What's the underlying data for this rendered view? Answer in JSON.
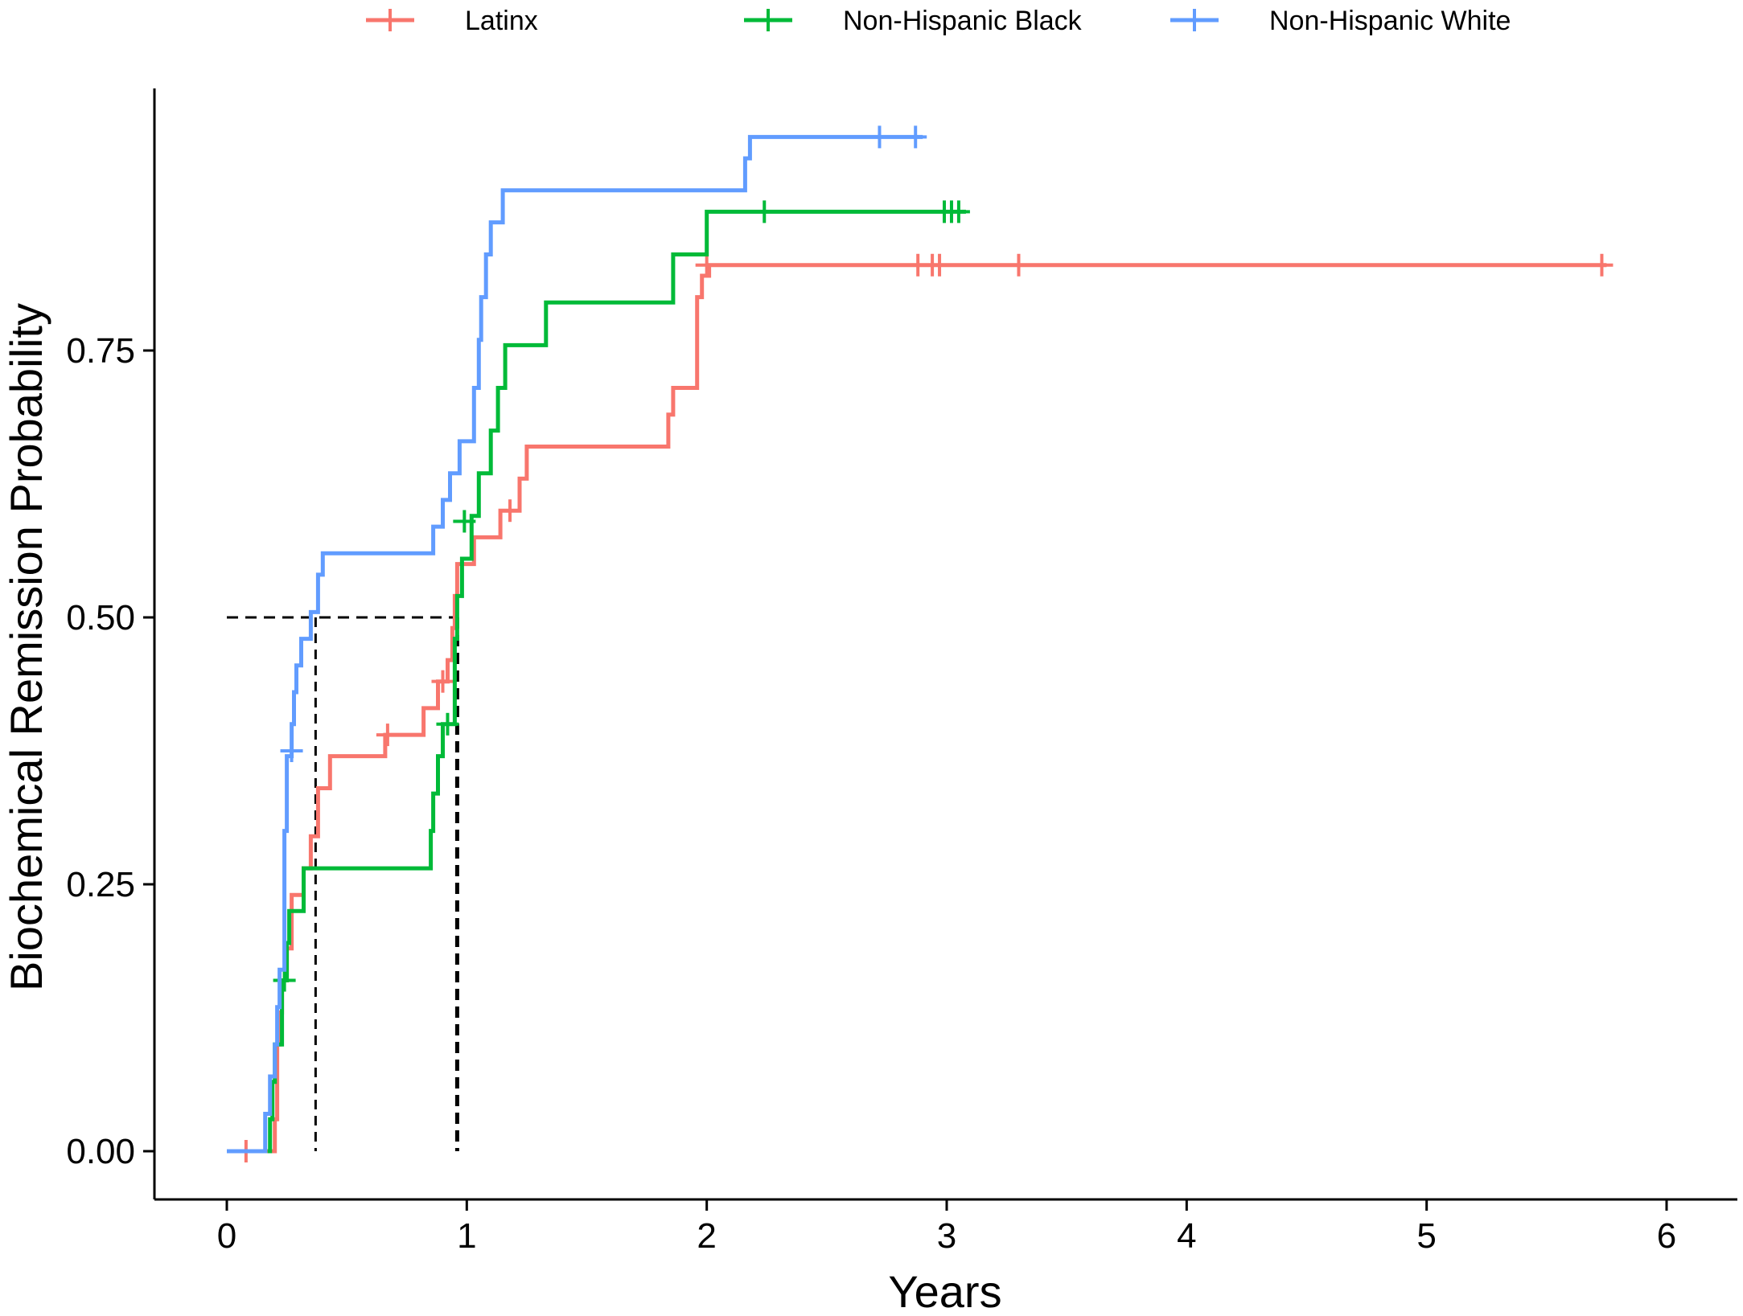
{
  "chart_data": {
    "type": "line",
    "subtype": "kaplan-meier step",
    "title": "",
    "xlabel": "Years",
    "ylabel": "Biochemical Remission Probability",
    "xlim": [
      -0.3,
      6.3
    ],
    "ylim": [
      -0.05,
      1.0
    ],
    "x_ticks": [
      0,
      1,
      2,
      3,
      4,
      5,
      6
    ],
    "x_tick_labels": [
      "0",
      "1",
      "2",
      "3",
      "4",
      "5",
      "6"
    ],
    "y_ticks": [
      0,
      0.25,
      0.5,
      0.75
    ],
    "y_tick_labels": [
      "0.00",
      "0.25",
      "0.50",
      "0.75"
    ],
    "grid": false,
    "legend_position": "top",
    "series": [
      {
        "name": "Latinx",
        "color": "#F8766D",
        "steps": [
          [
            0,
            0
          ],
          [
            0.2,
            0
          ],
          [
            0.2,
            0.03
          ],
          [
            0.21,
            0.03
          ],
          [
            0.21,
            0.1
          ],
          [
            0.22,
            0.1
          ],
          [
            0.22,
            0.13
          ],
          [
            0.23,
            0.13
          ],
          [
            0.23,
            0.16
          ],
          [
            0.25,
            0.16
          ],
          [
            0.25,
            0.19
          ],
          [
            0.27,
            0.19
          ],
          [
            0.27,
            0.24
          ],
          [
            0.32,
            0.24
          ],
          [
            0.32,
            0.265
          ],
          [
            0.35,
            0.265
          ],
          [
            0.35,
            0.295
          ],
          [
            0.38,
            0.295
          ],
          [
            0.38,
            0.34
          ],
          [
            0.43,
            0.34
          ],
          [
            0.43,
            0.37
          ],
          [
            0.66,
            0.37
          ],
          [
            0.66,
            0.39
          ],
          [
            0.82,
            0.39
          ],
          [
            0.82,
            0.415
          ],
          [
            0.88,
            0.415
          ],
          [
            0.88,
            0.44
          ],
          [
            0.92,
            0.44
          ],
          [
            0.92,
            0.46
          ],
          [
            0.94,
            0.46
          ],
          [
            0.94,
            0.49
          ],
          [
            0.95,
            0.49
          ],
          [
            0.95,
            0.52
          ],
          [
            0.96,
            0.52
          ],
          [
            0.96,
            0.55
          ],
          [
            1.03,
            0.55
          ],
          [
            1.03,
            0.575
          ],
          [
            1.14,
            0.575
          ],
          [
            1.14,
            0.6
          ],
          [
            1.22,
            0.6
          ],
          [
            1.22,
            0.63
          ],
          [
            1.25,
            0.63
          ],
          [
            1.25,
            0.66
          ],
          [
            1.84,
            0.66
          ],
          [
            1.84,
            0.69
          ],
          [
            1.86,
            0.69
          ],
          [
            1.86,
            0.715
          ],
          [
            1.96,
            0.715
          ],
          [
            1.96,
            0.8
          ],
          [
            1.98,
            0.8
          ],
          [
            1.98,
            0.82
          ],
          [
            2.01,
            0.82
          ],
          [
            2.01,
            0.83
          ],
          [
            5.75,
            0.83
          ]
        ],
        "censor_x": [
          0.08,
          0.67,
          0.9,
          1.18,
          2.0,
          2.88,
          2.94,
          2.97,
          3.3,
          5.73
        ],
        "censor_y": [
          0,
          0.39,
          0.44,
          0.6,
          0.83,
          0.83,
          0.83,
          0.83,
          0.83,
          0.83
        ]
      },
      {
        "name": "Non-Hispanic Black",
        "color": "#00BA38",
        "steps": [
          [
            0.17,
            0
          ],
          [
            0.18,
            0
          ],
          [
            0.18,
            0.03
          ],
          [
            0.19,
            0.03
          ],
          [
            0.19,
            0.065
          ],
          [
            0.2,
            0.065
          ],
          [
            0.2,
            0.1
          ],
          [
            0.23,
            0.1
          ],
          [
            0.23,
            0.16
          ],
          [
            0.25,
            0.16
          ],
          [
            0.25,
            0.195
          ],
          [
            0.26,
            0.195
          ],
          [
            0.26,
            0.225
          ],
          [
            0.32,
            0.225
          ],
          [
            0.32,
            0.265
          ],
          [
            0.85,
            0.265
          ],
          [
            0.85,
            0.3
          ],
          [
            0.86,
            0.3
          ],
          [
            0.86,
            0.335
          ],
          [
            0.88,
            0.335
          ],
          [
            0.88,
            0.37
          ],
          [
            0.9,
            0.37
          ],
          [
            0.9,
            0.4
          ],
          [
            0.95,
            0.4
          ],
          [
            0.95,
            0.48
          ],
          [
            0.96,
            0.48
          ],
          [
            0.96,
            0.52
          ],
          [
            0.98,
            0.52
          ],
          [
            0.98,
            0.555
          ],
          [
            1.02,
            0.555
          ],
          [
            1.02,
            0.595
          ],
          [
            1.05,
            0.595
          ],
          [
            1.05,
            0.635
          ],
          [
            1.1,
            0.635
          ],
          [
            1.1,
            0.675
          ],
          [
            1.13,
            0.675
          ],
          [
            1.13,
            0.715
          ],
          [
            1.16,
            0.715
          ],
          [
            1.16,
            0.755
          ],
          [
            1.33,
            0.755
          ],
          [
            1.33,
            0.795
          ],
          [
            1.86,
            0.795
          ],
          [
            1.86,
            0.84
          ],
          [
            2.0,
            0.84
          ],
          [
            2.0,
            0.88
          ],
          [
            3.08,
            0.88
          ]
        ],
        "censor_x": [
          0.24,
          0.92,
          0.99,
          2.24,
          2.99,
          3.02,
          3.05
        ],
        "censor_y": [
          0.16,
          0.4,
          0.59,
          0.88,
          0.88,
          0.88,
          0.88
        ]
      },
      {
        "name": "Non-Hispanic White",
        "color": "#619CFF",
        "steps": [
          [
            0,
            0
          ],
          [
            0.16,
            0
          ],
          [
            0.16,
            0.035
          ],
          [
            0.18,
            0.035
          ],
          [
            0.18,
            0.07
          ],
          [
            0.2,
            0.07
          ],
          [
            0.2,
            0.1
          ],
          [
            0.21,
            0.1
          ],
          [
            0.21,
            0.135
          ],
          [
            0.22,
            0.135
          ],
          [
            0.22,
            0.17
          ],
          [
            0.24,
            0.17
          ],
          [
            0.24,
            0.3
          ],
          [
            0.25,
            0.3
          ],
          [
            0.25,
            0.37
          ],
          [
            0.27,
            0.37
          ],
          [
            0.27,
            0.4
          ],
          [
            0.28,
            0.4
          ],
          [
            0.28,
            0.43
          ],
          [
            0.29,
            0.43
          ],
          [
            0.29,
            0.455
          ],
          [
            0.31,
            0.455
          ],
          [
            0.31,
            0.48
          ],
          [
            0.35,
            0.48
          ],
          [
            0.35,
            0.505
          ],
          [
            0.38,
            0.505
          ],
          [
            0.38,
            0.54
          ],
          [
            0.4,
            0.54
          ],
          [
            0.4,
            0.56
          ],
          [
            0.86,
            0.56
          ],
          [
            0.86,
            0.585
          ],
          [
            0.9,
            0.585
          ],
          [
            0.9,
            0.61
          ],
          [
            0.93,
            0.61
          ],
          [
            0.93,
            0.635
          ],
          [
            0.97,
            0.635
          ],
          [
            0.97,
            0.665
          ],
          [
            1.03,
            0.665
          ],
          [
            1.03,
            0.715
          ],
          [
            1.05,
            0.715
          ],
          [
            1.05,
            0.76
          ],
          [
            1.06,
            0.76
          ],
          [
            1.06,
            0.8
          ],
          [
            1.08,
            0.8
          ],
          [
            1.08,
            0.84
          ],
          [
            1.1,
            0.84
          ],
          [
            1.1,
            0.87
          ],
          [
            1.15,
            0.87
          ],
          [
            1.15,
            0.9
          ],
          [
            2.16,
            0.9
          ],
          [
            2.16,
            0.93
          ],
          [
            2.18,
            0.93
          ],
          [
            2.18,
            0.95
          ],
          [
            2.9,
            0.95
          ]
        ],
        "censor_x": [
          0.27,
          2.72,
          2.87
        ],
        "censor_y": [
          0.375,
          0.95,
          0.95
        ]
      }
    ],
    "median_reference": {
      "y": 0.5,
      "x_values": [
        0.37,
        0.96
      ]
    }
  }
}
